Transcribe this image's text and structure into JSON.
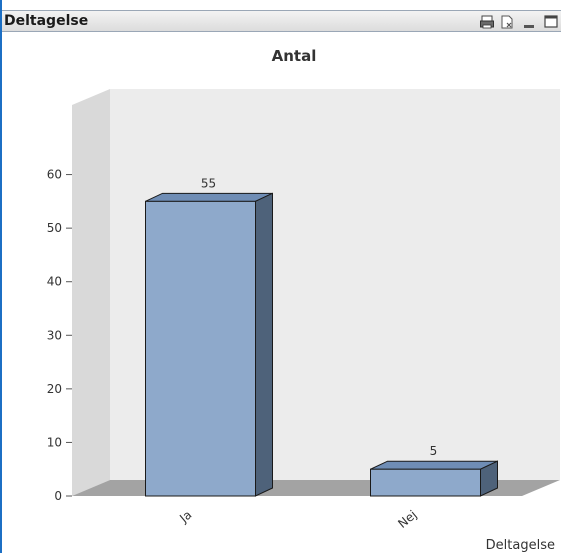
{
  "window": {
    "caption": "Deltagelse",
    "icons": [
      "print-icon",
      "clear-selection-icon",
      "minimize-icon",
      "maximize-icon"
    ]
  },
  "chart_data": {
    "type": "bar",
    "title": "Antal",
    "xlabel": "Deltagelse",
    "ylabel": "",
    "categories": [
      "Ja",
      "Nej"
    ],
    "values": [
      55,
      5
    ],
    "data_labels": [
      "55",
      "5"
    ],
    "ylim": [
      0,
      70
    ],
    "yticks": [
      0,
      10,
      20,
      30,
      40,
      50,
      60
    ],
    "ytick_labels": [
      "0",
      "10",
      "20",
      "30",
      "40",
      "50",
      "60"
    ],
    "grid": false,
    "legend": "none",
    "style": "3d",
    "colors": {
      "bar_front": "#8ea9cb",
      "bar_top": "#6f8db5",
      "bar_side": "#4e627a",
      "back_wall": "#ececec",
      "side_wall": "#d9d9d9",
      "floor": "#a3a3a3",
      "frame_border": "#1c6fc4"
    }
  }
}
